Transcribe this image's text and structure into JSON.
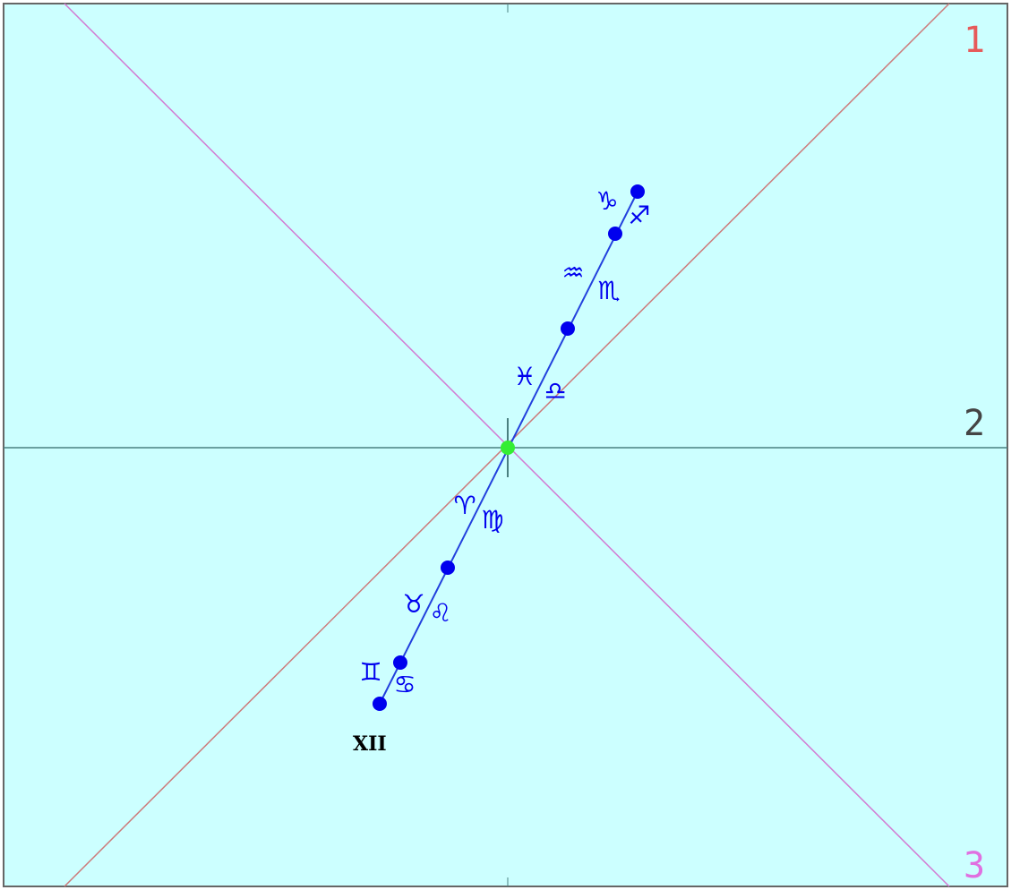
{
  "colors": {
    "background": "#ccffff",
    "border": "#666666",
    "axis": "#4a8080",
    "diag_line_1": "#cc7a7a",
    "diag_line_3": "#d27ad2",
    "ecliptic": "#2240dd",
    "points": "#0000ee",
    "center": "#33ee33",
    "label_1": "#e65a5a",
    "label_2": "#444444",
    "label_3": "#e070e0",
    "label_roman": "#000000"
  },
  "labels": {
    "line_1": "1",
    "line_2": "2",
    "line_3": "3",
    "roman": "XII"
  },
  "signs": [
    {
      "symbol": "♑",
      "name": "capricorn"
    },
    {
      "symbol": "♐",
      "name": "sagittarius"
    },
    {
      "symbol": "♒",
      "name": "aquarius"
    },
    {
      "symbol": "♏",
      "name": "scorpio"
    },
    {
      "symbol": "♓",
      "name": "pisces"
    },
    {
      "symbol": "♎",
      "name": "libra"
    },
    {
      "symbol": "♈",
      "name": "aries"
    },
    {
      "symbol": "♍",
      "name": "virgo"
    },
    {
      "symbol": "♉",
      "name": "taurus"
    },
    {
      "symbol": "♌",
      "name": "leo"
    },
    {
      "symbol": "♊",
      "name": "gemini"
    },
    {
      "symbol": "♋",
      "name": "cancer"
    }
  ]
}
